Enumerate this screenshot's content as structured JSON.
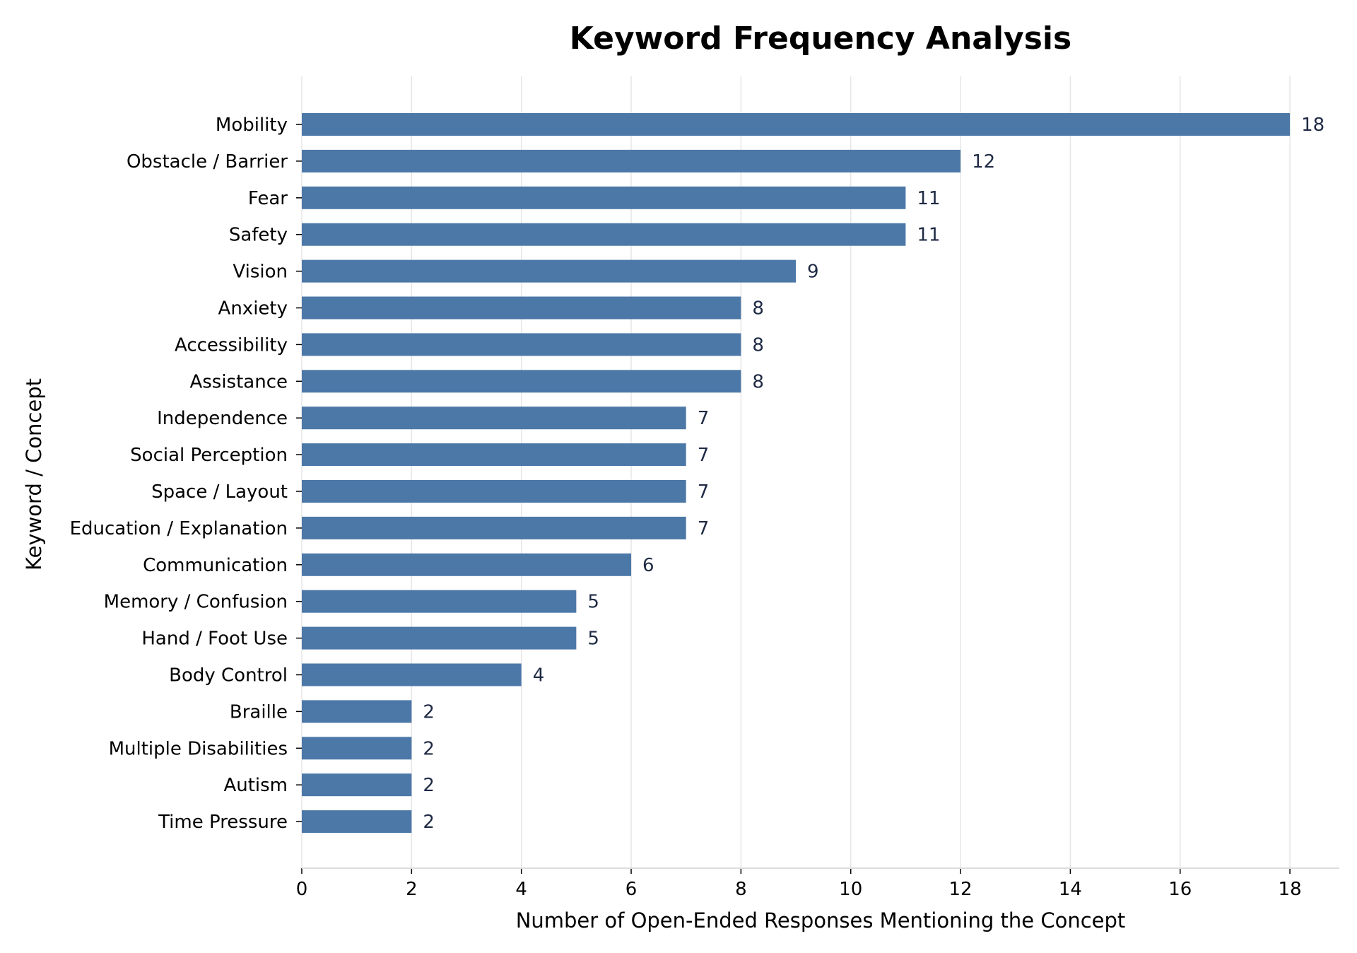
{
  "chart_data": {
    "type": "bar",
    "orientation": "horizontal",
    "title": "Keyword Frequency Analysis",
    "xlabel": "Number of Open-Ended Responses Mentioning the Concept",
    "ylabel": "Keyword / Concept",
    "xlim": [
      0,
      18.9
    ],
    "xticks": [
      "0",
      "2",
      "4",
      "6",
      "8",
      "10",
      "12",
      "14",
      "16",
      "18"
    ],
    "grid": "vertical",
    "bar_color": "#4c78a8",
    "categories": [
      "Mobility",
      "Obstacle / Barrier",
      "Fear",
      "Safety",
      "Vision",
      "Anxiety",
      "Accessibility",
      "Assistance",
      "Independence",
      "Social Perception",
      "Space / Layout",
      "Education / Explanation",
      "Communication",
      "Memory / Confusion",
      "Hand / Foot Use",
      "Body Control",
      "Braille",
      "Multiple Disabilities",
      "Autism",
      "Time Pressure"
    ],
    "values": [
      18,
      12,
      11,
      11,
      9,
      8,
      8,
      8,
      7,
      7,
      7,
      7,
      6,
      5,
      5,
      4,
      2,
      2,
      2,
      2
    ],
    "value_labels": [
      "18",
      "12",
      "11",
      "11",
      "9",
      "8",
      "8",
      "8",
      "7",
      "7",
      "7",
      "7",
      "6",
      "5",
      "5",
      "4",
      "2",
      "2",
      "2",
      "2"
    ]
  }
}
